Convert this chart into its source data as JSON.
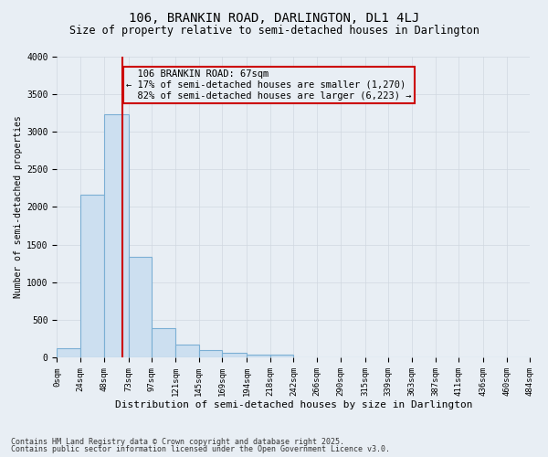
{
  "title_line1": "106, BRANKIN ROAD, DARLINGTON, DL1 4LJ",
  "title_line2": "Size of property relative to semi-detached houses in Darlington",
  "xlabel": "Distribution of semi-detached houses by size in Darlington",
  "ylabel": "Number of semi-detached properties",
  "footnote1": "Contains HM Land Registry data © Crown copyright and database right 2025.",
  "footnote2": "Contains public sector information licensed under the Open Government Licence v3.0.",
  "property_label": "106 BRANKIN ROAD: 67sqm",
  "smaller_pct": "17%",
  "smaller_n": "1,270",
  "larger_pct": "82%",
  "larger_n": "6,223",
  "property_size_sqm": 67,
  "bar_edge_color": "#7bafd4",
  "bar_face_color": "#ccdff0",
  "vline_color": "#cc0000",
  "annotation_box_color": "#cc0000",
  "grid_color": "#d0d8e0",
  "bg_color": "#e8eef4",
  "bins": [
    0,
    24,
    48,
    73,
    97,
    121,
    145,
    169,
    194,
    218,
    242,
    266,
    290,
    315,
    339,
    363,
    387,
    411,
    436,
    460,
    484
  ],
  "counts": [
    120,
    2160,
    3230,
    1340,
    390,
    175,
    100,
    60,
    45,
    40,
    10,
    5,
    3,
    2,
    1,
    1,
    0,
    0,
    0,
    0
  ],
  "ylim": [
    0,
    4000
  ],
  "yticks": [
    0,
    500,
    1000,
    1500,
    2000,
    2500,
    3000,
    3500,
    4000
  ]
}
